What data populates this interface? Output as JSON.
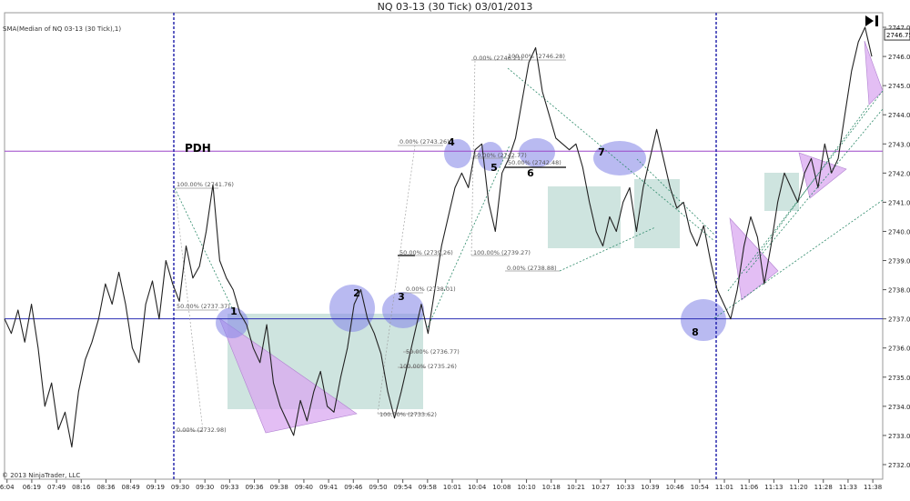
{
  "header": {
    "title": "NQ 03-13 (30 Tick)  03/01/2013",
    "indicator": "SMA(Median of NQ 03-13 (30 Tick),1)",
    "copyright": "© 2013 NinjaTrader, LLC"
  },
  "colors": {
    "price": "#222222",
    "hline_blue": "#2b2fb5",
    "hline_purple": "#9b47c8",
    "vline": "#1a1aa8",
    "box_fill": "#b9d8d2",
    "triangle_fill": "#d9a8f0",
    "circle_fill": "#8a8ce8",
    "fib": "#999999"
  },
  "chart_data": {
    "type": "line",
    "ylim": [
      2731.5,
      2747.5
    ],
    "y_ticks": [
      2732,
      2733,
      2734,
      2735,
      2736,
      2737,
      2738,
      2739,
      2740,
      2741,
      2742,
      2743,
      2744,
      2745,
      2746,
      2747
    ],
    "x_ticks": [
      "6:04",
      "06:19",
      "07:49",
      "08:16",
      "08:36",
      "08:49",
      "09:19",
      "09:30",
      "09:30",
      "09:33",
      "09:36",
      "09:38",
      "09:40",
      "09:41",
      "09:46",
      "09:50",
      "09:54",
      "09:58",
      "10:01",
      "10:04",
      "10:08",
      "10:10",
      "10:18",
      "10:21",
      "10:27",
      "10:33",
      "10:39",
      "10:46",
      "10:54",
      "11:01",
      "11:06",
      "11:13",
      "11:20",
      "11:28",
      "11:33",
      "11:38"
    ],
    "series": [
      {
        "values": [
          2737.0,
          2736.5,
          2737.3,
          2736.2,
          2737.5,
          2736.0,
          2734.0,
          2734.8,
          2733.2,
          2733.8,
          2732.6,
          2734.5,
          2735.6,
          2736.2,
          2737.0,
          2738.2,
          2737.5,
          2738.6,
          2737.5,
          2736.0,
          2735.5,
          2737.5,
          2738.3,
          2737.0,
          2739.0,
          2738.2,
          2737.6,
          2739.5,
          2738.4,
          2738.8,
          2740.0,
          2741.6,
          2739.0,
          2738.4,
          2738.0,
          2737.2,
          2736.8,
          2736.0,
          2735.5,
          2736.8,
          2734.8,
          2734.0,
          2733.5,
          2733.0,
          2734.2,
          2733.5,
          2734.5,
          2735.2,
          2734.0,
          2733.8,
          2735.0,
          2736.0,
          2737.5,
          2738.0,
          2737.0,
          2736.5,
          2735.8,
          2734.5,
          2733.6,
          2734.5,
          2735.5,
          2736.5,
          2737.5,
          2736.5,
          2738.0,
          2739.5,
          2740.5,
          2741.5,
          2742.0,
          2741.5,
          2742.8,
          2743.0,
          2741.0,
          2740.0,
          2742.0,
          2742.5,
          2743.2,
          2744.5,
          2745.8,
          2746.3,
          2744.8,
          2744.0,
          2743.2,
          2743.0,
          2742.8,
          2743.0,
          2742.2,
          2741.0,
          2740.0,
          2739.5,
          2740.5,
          2740.0,
          2741.0,
          2741.5,
          2740.0,
          2741.5,
          2742.5,
          2743.5,
          2742.5,
          2741.5,
          2740.8,
          2741.0,
          2740.0,
          2739.5,
          2740.2,
          2739.0,
          2738.0,
          2737.5,
          2737.0,
          2738.0,
          2739.5,
          2740.5,
          2739.8,
          2738.2,
          2739.5,
          2741.0,
          2742.0,
          2741.5,
          2741.0,
          2742.0,
          2742.5,
          2741.5,
          2743.0,
          2742.0,
          2742.5,
          2744.0,
          2745.5,
          2746.5,
          2747.0,
          2746.0
        ]
      }
    ],
    "price_label": "2746.75",
    "hlines": [
      {
        "value": 2742.75,
        "style": "purple"
      },
      {
        "value": 2737.0,
        "style": "blue"
      }
    ],
    "session_markers": [
      "09:30",
      "11:01"
    ],
    "annotations": {
      "pdh": "PDH",
      "numbers": [
        "1",
        "2",
        "3",
        "4",
        "5",
        "6",
        "7",
        "8"
      ],
      "fib_labels": [
        "100.00% (2741.76)",
        "50.00% (2737.37)",
        "0.00% (2732.98)",
        "0.00% (2743.26)",
        "50.00% (2739.26)",
        "0.00% (2738.01)",
        "50.00% (2736.77)",
        "100.00% (2735.26)",
        "100.00% (2733.62)",
        "0.00% (2746.21)",
        "100.00% (2746.28)",
        "50.00% (2742.77)",
        "50.00% (2742.48)",
        "100.00% (2739.27)",
        "0.00% (2738.88)"
      ]
    }
  }
}
